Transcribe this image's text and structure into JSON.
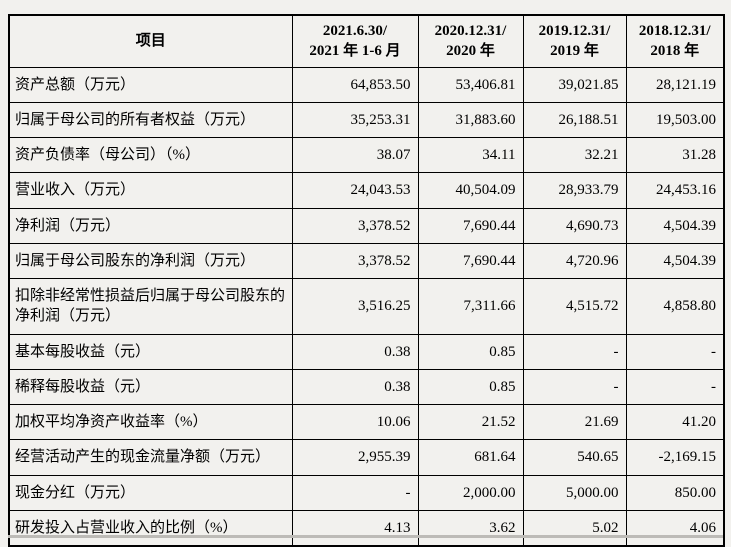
{
  "page": {
    "background_color": "#f2f1ee",
    "table_border_color": "#000000"
  },
  "table": {
    "columns": [
      {
        "label": "项目"
      },
      {
        "label": "2021.6.30/\n2021 年 1-6 月"
      },
      {
        "label": "2020.12.31/\n2020 年"
      },
      {
        "label": "2019.12.31/\n2019 年"
      },
      {
        "label": "2018.12.31/\n2018 年"
      }
    ],
    "rows": [
      {
        "label": "资产总额（万元）",
        "values": [
          "64,853.50",
          "53,406.81",
          "39,021.85",
          "28,121.19"
        ]
      },
      {
        "label": "归属于母公司的所有者权益（万元）",
        "values": [
          "35,253.31",
          "31,883.60",
          "26,188.51",
          "19,503.00"
        ]
      },
      {
        "label": "资产负债率（母公司）（%）",
        "values": [
          "38.07",
          "34.11",
          "32.21",
          "31.28"
        ]
      },
      {
        "label": "营业收入（万元）",
        "values": [
          "24,043.53",
          "40,504.09",
          "28,933.79",
          "24,453.16"
        ]
      },
      {
        "label": "净利润（万元）",
        "values": [
          "3,378.52",
          "7,690.44",
          "4,690.73",
          "4,504.39"
        ]
      },
      {
        "label": "归属于母公司股东的净利润（万元）",
        "values": [
          "3,378.52",
          "7,690.44",
          "4,720.96",
          "4,504.39"
        ]
      },
      {
        "label": "扣除非经常性损益后归属于母公司股东的净利润（万元）",
        "values": [
          "3,516.25",
          "7,311.66",
          "4,515.72",
          "4,858.80"
        ]
      },
      {
        "label": "基本每股收益（元）",
        "values": [
          "0.38",
          "0.85",
          "-",
          "-"
        ]
      },
      {
        "label": "稀释每股收益（元）",
        "values": [
          "0.38",
          "0.85",
          "-",
          "-"
        ]
      },
      {
        "label": "加权平均净资产收益率（%）",
        "values": [
          "10.06",
          "21.52",
          "21.69",
          "41.20"
        ]
      },
      {
        "label": "经营活动产生的现金流量净额（万元）",
        "values": [
          "2,955.39",
          "681.64",
          "540.65",
          "-2,169.15"
        ]
      },
      {
        "label": "现金分红（万元）",
        "values": [
          "-",
          "2,000.00",
          "5,000.00",
          "850.00"
        ]
      },
      {
        "label": "研发投入占营业收入的比例（%）",
        "values": [
          "4.13",
          "3.62",
          "5.02",
          "4.06"
        ]
      }
    ]
  }
}
